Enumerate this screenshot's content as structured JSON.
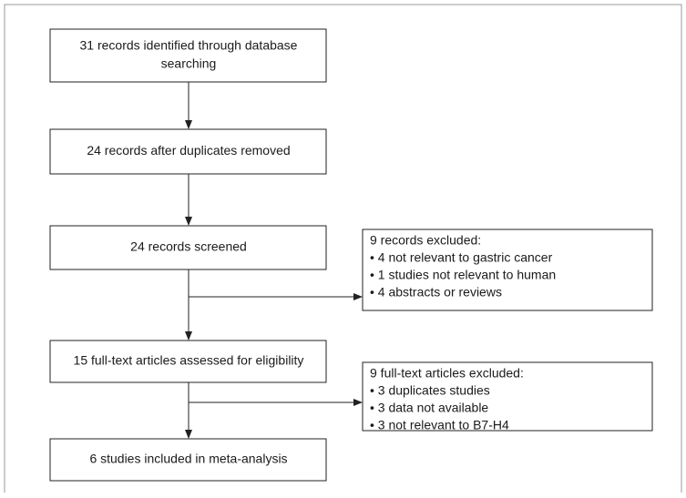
{
  "nodes": [
    {
      "lines": [
        "31 records identified through database",
        "searching"
      ]
    },
    {
      "lines": [
        "24 records after duplicates removed"
      ]
    },
    {
      "lines": [
        "24 records screened"
      ]
    },
    {
      "lines": [
        "15 full-text articles assessed for eligibility"
      ]
    },
    {
      "lines": [
        "6 studies included in meta-analysis"
      ]
    }
  ],
  "exclusions": [
    {
      "lines": [
        "9 records excluded:",
        "• 4 not relevant to gastric cancer",
        "• 1 studies not relevant to human",
        "• 4 abstracts or reviews"
      ]
    },
    {
      "lines": [
        "9 full-text articles excluded:",
        "• 3 duplicates studies",
        "• 3 data not available",
        "• 3 not relevant to B7-H4"
      ]
    }
  ]
}
